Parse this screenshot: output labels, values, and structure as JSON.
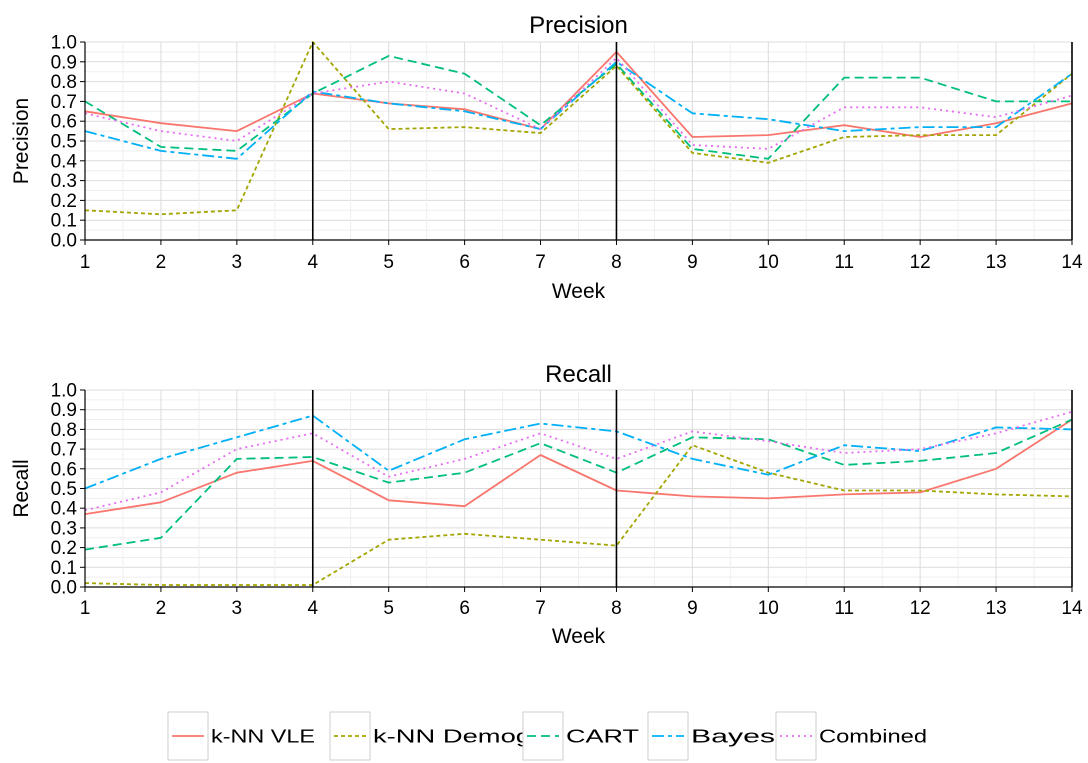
{
  "chart_data": [
    {
      "type": "line",
      "title": "Precision",
      "xlabel": "Week",
      "ylabel": "Precision",
      "x": [
        1,
        2,
        3,
        4,
        5,
        6,
        7,
        8,
        9,
        10,
        11,
        12,
        13,
        14
      ],
      "xticks": [
        "1",
        "2",
        "3",
        "4",
        "5",
        "6",
        "7",
        "8",
        "9",
        "10",
        "11",
        "12",
        "13",
        "14"
      ],
      "ylim": [
        0,
        1
      ],
      "yticks": [
        "0.0",
        "0.1",
        "0.2",
        "0.3",
        "0.4",
        "0.5",
        "0.6",
        "0.7",
        "0.8",
        "0.9",
        "1.0"
      ],
      "vlines": [
        4,
        8,
        14
      ],
      "grid": true,
      "series": [
        {
          "name": "k-NN VLE",
          "values": [
            0.65,
            0.59,
            0.55,
            0.74,
            0.69,
            0.66,
            0.56,
            0.95,
            0.52,
            0.53,
            0.58,
            0.52,
            0.59,
            0.69
          ]
        },
        {
          "name": "k-NN Demog",
          "values": [
            0.15,
            0.13,
            0.15,
            1.0,
            0.56,
            0.57,
            0.54,
            0.88,
            0.44,
            0.39,
            0.52,
            0.53,
            0.53,
            0.84
          ]
        },
        {
          "name": "CART",
          "values": [
            0.7,
            0.47,
            0.45,
            0.74,
            0.93,
            0.84,
            0.58,
            0.89,
            0.46,
            0.41,
            0.82,
            0.82,
            0.7,
            0.7
          ]
        },
        {
          "name": "Bayes",
          "values": [
            0.55,
            0.45,
            0.41,
            0.75,
            0.69,
            0.65,
            0.56,
            0.9,
            0.64,
            0.61,
            0.55,
            0.57,
            0.57,
            0.84
          ]
        },
        {
          "name": "Combined",
          "values": [
            0.64,
            0.55,
            0.5,
            0.74,
            0.8,
            0.74,
            0.56,
            0.92,
            0.48,
            0.46,
            0.67,
            0.67,
            0.62,
            0.73
          ]
        }
      ]
    },
    {
      "type": "line",
      "title": "Recall",
      "xlabel": "Week",
      "ylabel": "Recall",
      "x": [
        1,
        2,
        3,
        4,
        5,
        6,
        7,
        8,
        9,
        10,
        11,
        12,
        13,
        14
      ],
      "xticks": [
        "1",
        "2",
        "3",
        "4",
        "5",
        "6",
        "7",
        "8",
        "9",
        "10",
        "11",
        "12",
        "13",
        "14"
      ],
      "ylim": [
        0,
        1
      ],
      "yticks": [
        "0.0",
        "0.1",
        "0.2",
        "0.3",
        "0.4",
        "0.5",
        "0.6",
        "0.7",
        "0.8",
        "0.9",
        "1.0"
      ],
      "vlines": [
        4,
        8,
        14
      ],
      "grid": true,
      "series": [
        {
          "name": "k-NN VLE",
          "values": [
            0.37,
            0.43,
            0.58,
            0.64,
            0.44,
            0.41,
            0.67,
            0.49,
            0.46,
            0.45,
            0.47,
            0.48,
            0.6,
            0.85
          ]
        },
        {
          "name": "k-NN Demog",
          "values": [
            0.02,
            0.01,
            0.01,
            0.01,
            0.24,
            0.27,
            0.24,
            0.21,
            0.72,
            0.58,
            0.49,
            0.49,
            0.47,
            0.46
          ]
        },
        {
          "name": "CART",
          "values": [
            0.19,
            0.25,
            0.65,
            0.66,
            0.53,
            0.58,
            0.73,
            0.58,
            0.76,
            0.75,
            0.62,
            0.64,
            0.68,
            0.85
          ]
        },
        {
          "name": "Bayes",
          "values": [
            0.5,
            0.65,
            0.76,
            0.87,
            0.59,
            0.75,
            0.83,
            0.79,
            0.65,
            0.57,
            0.72,
            0.69,
            0.81,
            0.8
          ]
        },
        {
          "name": "Combined",
          "values": [
            0.39,
            0.48,
            0.7,
            0.78,
            0.56,
            0.65,
            0.78,
            0.65,
            0.79,
            0.74,
            0.68,
            0.7,
            0.78,
            0.89
          ]
        }
      ]
    }
  ],
  "legend": {
    "placement": "bottom",
    "items": [
      {
        "label": "k-NN VLE",
        "color": "#F8766D",
        "dash": "solid"
      },
      {
        "label": "k-NN Demog",
        "color": "#A3A500",
        "dash": "dotted-dash"
      },
      {
        "label": "CART",
        "color": "#00BF7D",
        "dash": "dashed"
      },
      {
        "label": "Bayes",
        "color": "#00B0F6",
        "dash": "long-short"
      },
      {
        "label": "Combined",
        "color": "#E76BF3",
        "dash": "dotted"
      }
    ]
  }
}
